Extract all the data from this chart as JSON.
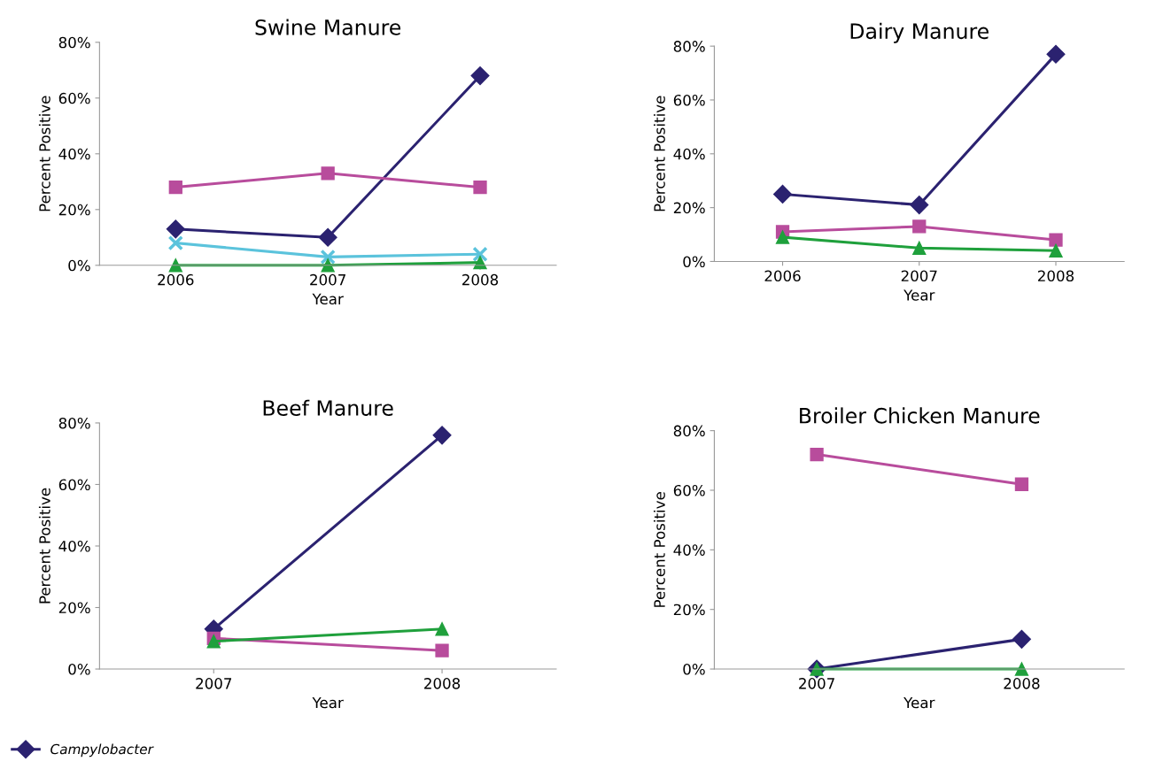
{
  "chart_data": [
    {
      "type": "line",
      "title": "Swine Manure",
      "xlabel": "Year",
      "ylabel": "Percent Positive",
      "categories": [
        "2006",
        "2007",
        "2008"
      ],
      "ylim": [
        0,
        80
      ],
      "yticks": [
        {
          "value": 0,
          "label": "0%"
        },
        {
          "value": 20,
          "label": "20%"
        },
        {
          "value": 40,
          "label": "40%"
        },
        {
          "value": 60,
          "label": "60%"
        },
        {
          "value": 80,
          "label": "80%"
        }
      ],
      "grid": false,
      "legend": "bottom left",
      "series": [
        {
          "name": "Campylobacter",
          "color": "#2b2270",
          "marker": "diamond",
          "values": [
            13,
            10,
            68
          ]
        },
        {
          "color": "#b84c9c",
          "marker": "square",
          "values": [
            28,
            33,
            28
          ]
        },
        {
          "color": "#5bc3dc",
          "marker": "cross",
          "values": [
            8,
            3,
            4
          ]
        },
        {
          "color": "#1fa03c",
          "marker": "triangle",
          "values": [
            0,
            0,
            1
          ]
        }
      ]
    },
    {
      "type": "line",
      "title": "Dairy Manure",
      "xlabel": "Year",
      "ylabel": "Percent Positive",
      "categories": [
        "2006",
        "2007",
        "2008"
      ],
      "ylim": [
        0,
        80
      ],
      "yticks": [
        {
          "value": 0,
          "label": "0%"
        },
        {
          "value": 20,
          "label": "20%"
        },
        {
          "value": 40,
          "label": "40%"
        },
        {
          "value": 60,
          "label": "60%"
        },
        {
          "value": 80,
          "label": "80%"
        }
      ],
      "grid": false,
      "legend": false,
      "series": [
        {
          "color": "#2b2270",
          "marker": "diamond",
          "values": [
            25,
            21,
            77
          ]
        },
        {
          "color": "#b84c9c",
          "marker": "square",
          "values": [
            11,
            13,
            8
          ]
        },
        {
          "color": "#1fa03c",
          "marker": "triangle",
          "values": [
            9,
            5,
            4
          ]
        }
      ]
    },
    {
      "type": "line",
      "title": "Beef Manure",
      "xlabel": "Year",
      "ylabel": "Percent Positive",
      "categories": [
        "2007",
        "2008"
      ],
      "ylim": [
        0,
        80
      ],
      "yticks": [
        {
          "value": 0,
          "label": "0%"
        },
        {
          "value": 20,
          "label": "20%"
        },
        {
          "value": 40,
          "label": "40%"
        },
        {
          "value": 60,
          "label": "60%"
        },
        {
          "value": 80,
          "label": "80%"
        }
      ],
      "grid": false,
      "legend": false,
      "series": [
        {
          "color": "#2b2270",
          "marker": "diamond",
          "values": [
            13,
            76
          ]
        },
        {
          "color": "#b84c9c",
          "marker": "square",
          "values": [
            10,
            6
          ]
        },
        {
          "color": "#1fa03c",
          "marker": "triangle",
          "values": [
            9,
            13
          ]
        }
      ]
    },
    {
      "type": "line",
      "title": "Broiler Chicken Manure",
      "xlabel": "Year",
      "ylabel": "Percent Positive",
      "categories": [
        "2007",
        "2008"
      ],
      "ylim": [
        0,
        80
      ],
      "yticks": [
        {
          "value": 0,
          "label": "0%"
        },
        {
          "value": 20,
          "label": "20%"
        },
        {
          "value": 40,
          "label": "40%"
        },
        {
          "value": 60,
          "label": "60%"
        },
        {
          "value": 80,
          "label": "80%"
        }
      ],
      "grid": false,
      "legend": false,
      "series": [
        {
          "color": "#2b2270",
          "marker": "diamond",
          "values": [
            0,
            10
          ]
        },
        {
          "color": "#b84c9c",
          "marker": "square",
          "values": [
            72,
            62
          ]
        },
        {
          "color": "#1fa03c",
          "marker": "triangle",
          "values": [
            0,
            0
          ]
        }
      ]
    }
  ]
}
